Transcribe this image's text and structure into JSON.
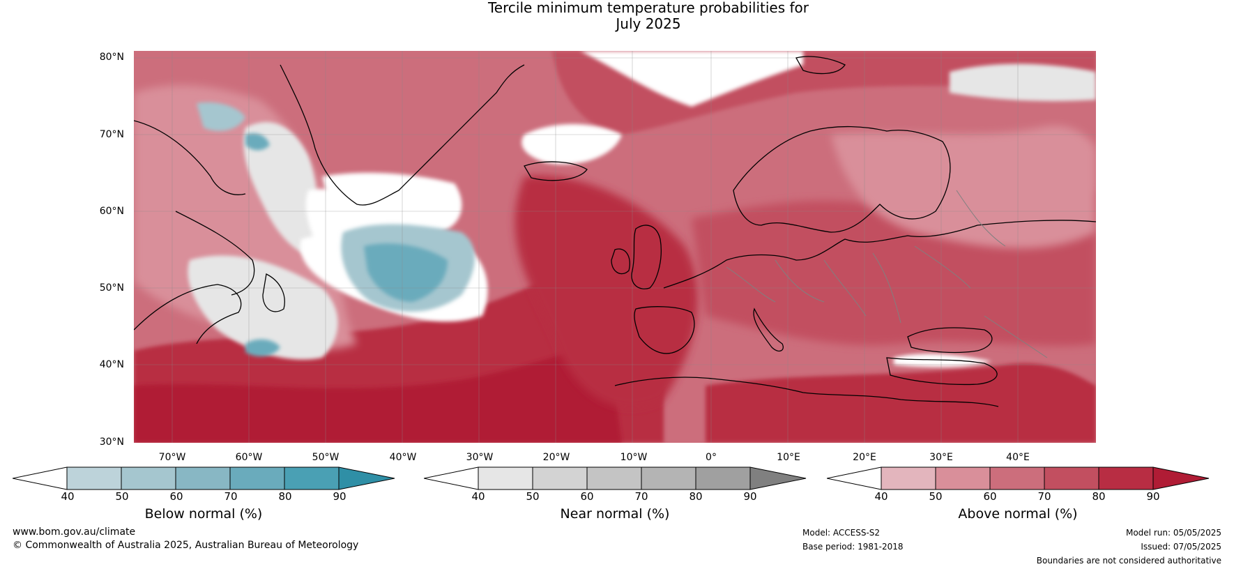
{
  "title": {
    "line1": "Tercile minimum temperature probabilities for",
    "line2": "July 2025"
  },
  "map": {
    "lat_labels": [
      "80°N",
      "70°N",
      "60°N",
      "50°N",
      "40°N",
      "30°N"
    ],
    "lon_labels": [
      "70°W",
      "60°W",
      "50°W",
      "40°W",
      "30°W",
      "20°W",
      "10°W",
      "0°",
      "10°E",
      "20°E",
      "30°E",
      "40°E"
    ],
    "region": "North Atlantic and Europe"
  },
  "colorbars": [
    {
      "title": "Below normal (%)",
      "ticks": [
        "40",
        "50",
        "60",
        "70",
        "80",
        "90"
      ],
      "colors": [
        "#ffffff",
        "#bdd3da",
        "#a5c6cf",
        "#88b7c4",
        "#6aabbc",
        "#4aa0b4",
        "#2f8fa6"
      ]
    },
    {
      "title": "Near normal (%)",
      "ticks": [
        "40",
        "50",
        "60",
        "70",
        "80",
        "90"
      ],
      "colors": [
        "#ffffff",
        "#e6e6e6",
        "#d3d3d3",
        "#c4c4c4",
        "#b4b4b4",
        "#a0a0a0",
        "#808080"
      ]
    },
    {
      "title": "Above normal (%)",
      "ticks": [
        "40",
        "50",
        "60",
        "70",
        "80",
        "90"
      ],
      "colors": [
        "#ffffff",
        "#e3b5bd",
        "#d98f9a",
        "#cc6e7c",
        "#c24f60",
        "#b82d43",
        "#b01c35"
      ]
    }
  ],
  "footer": {
    "website": "www.bom.gov.au/climate",
    "copyright": "© Commonwealth of Australia 2025, Australian Bureau of Meteorology",
    "model": "Model: ACCESS-S2",
    "base_period": "Base period: 1981-2018",
    "model_run": "Model run: 05/05/2025",
    "issued": "Issued: 07/05/2025",
    "disclaimer": "Boundaries are not considered authoritative"
  },
  "colors": {
    "above_dark": "#b01c35",
    "above_mid": "#c24f60",
    "above_light": "#d98f9a",
    "near": "#e3e3e3",
    "below": "#5aa6b8",
    "coastline": "#000000",
    "border": "#808080"
  }
}
